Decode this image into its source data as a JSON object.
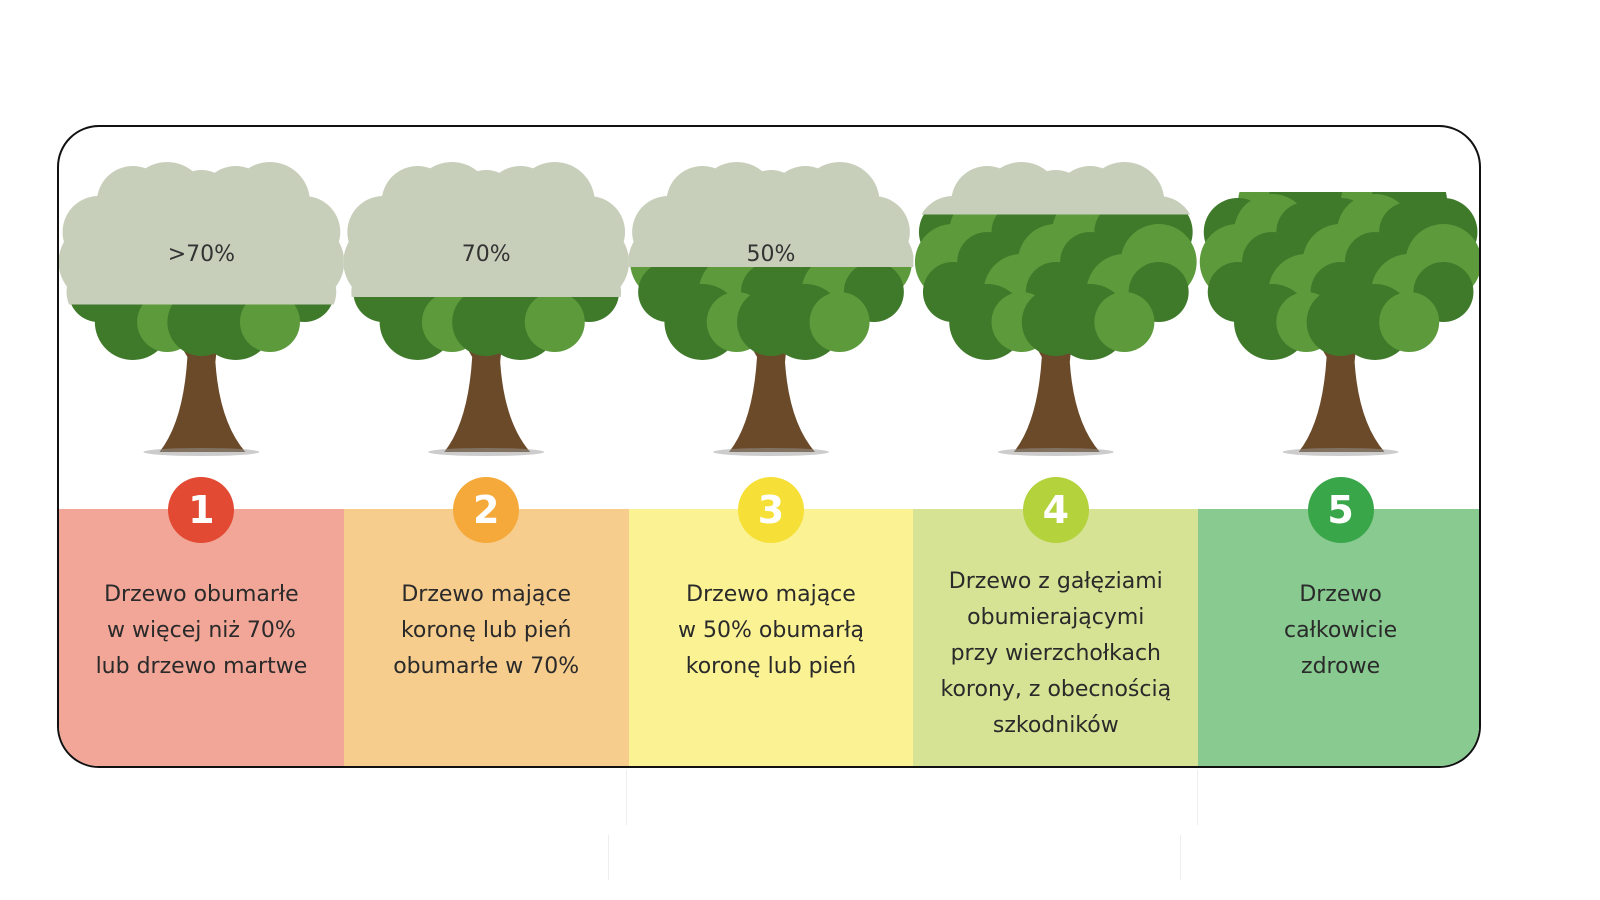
{
  "colors": {
    "outline": "#111111",
    "canopy_dead": "#c7cfbb",
    "canopy_live": "#3f7a2a",
    "canopy_live_light": "#5c9a3c",
    "trunk": "#6b4a2a"
  },
  "stages": [
    {
      "number": "1",
      "badge_color": "#e24a33",
      "panel_color": "#f2a697",
      "percent_label": ">70%",
      "lines": [
        "Drzewo obumarłe",
        "w więcej niż 70%",
        "lub drzewo martwe"
      ],
      "dead_fraction": 0.75
    },
    {
      "number": "2",
      "badge_color": "#f4a93a",
      "panel_color": "#f7cd8e",
      "percent_label": "70%",
      "lines": [
        "Drzewo mające",
        "koronę lub pień",
        "obumarłe w 70%"
      ],
      "dead_fraction": 0.7
    },
    {
      "number": "3",
      "badge_color": "#f6e037",
      "panel_color": "#fbf294",
      "percent_label": "50%",
      "lines": [
        "Drzewo mające",
        "w 50% obumarłą",
        "koronę lub pień"
      ],
      "dead_fraction": 0.5
    },
    {
      "number": "4",
      "badge_color": "#b3d23c",
      "panel_color": "#d6e394",
      "percent_label": "",
      "lines": [
        "Drzewo z gałęziami",
        "obumierającymi",
        "przy wierzchołkach",
        "korony, z obecnością",
        "szkodników"
      ],
      "dead_fraction": 0.15
    },
    {
      "number": "5",
      "badge_color": "#3aa64a",
      "panel_color": "#88ca90",
      "percent_label": "",
      "lines": [
        "Drzewo",
        "całkowicie",
        "zdrowe"
      ],
      "dead_fraction": 0
    }
  ]
}
